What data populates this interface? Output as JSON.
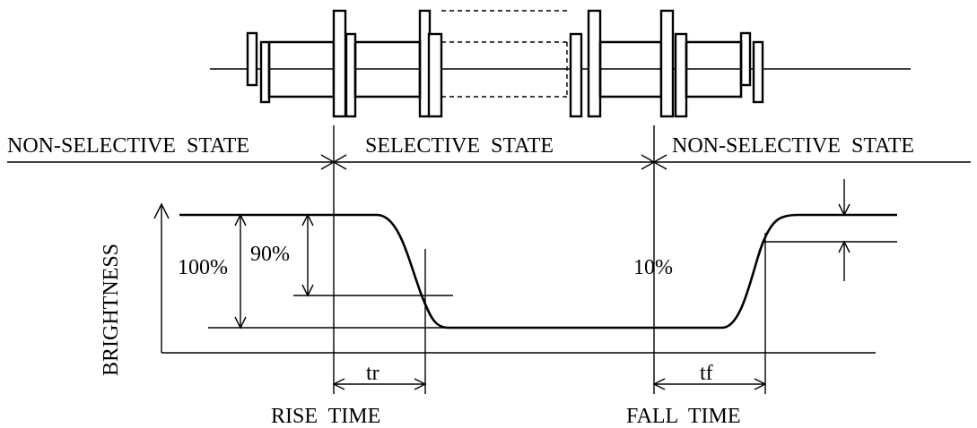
{
  "labels": {
    "state_left": "NON-SELECTIVE  STATE",
    "state_mid": "SELECTIVE  STATE",
    "state_right": "NON-SELECTIVE  STATE",
    "axis_y": "BRIGHTNESS",
    "pct_100": "100%",
    "pct_90": "90%",
    "pct_10": "10%",
    "tr": "tr",
    "tf": "tf",
    "rise_time": "RISE  TIME",
    "fall_time": "FALL  TIME"
  }
}
